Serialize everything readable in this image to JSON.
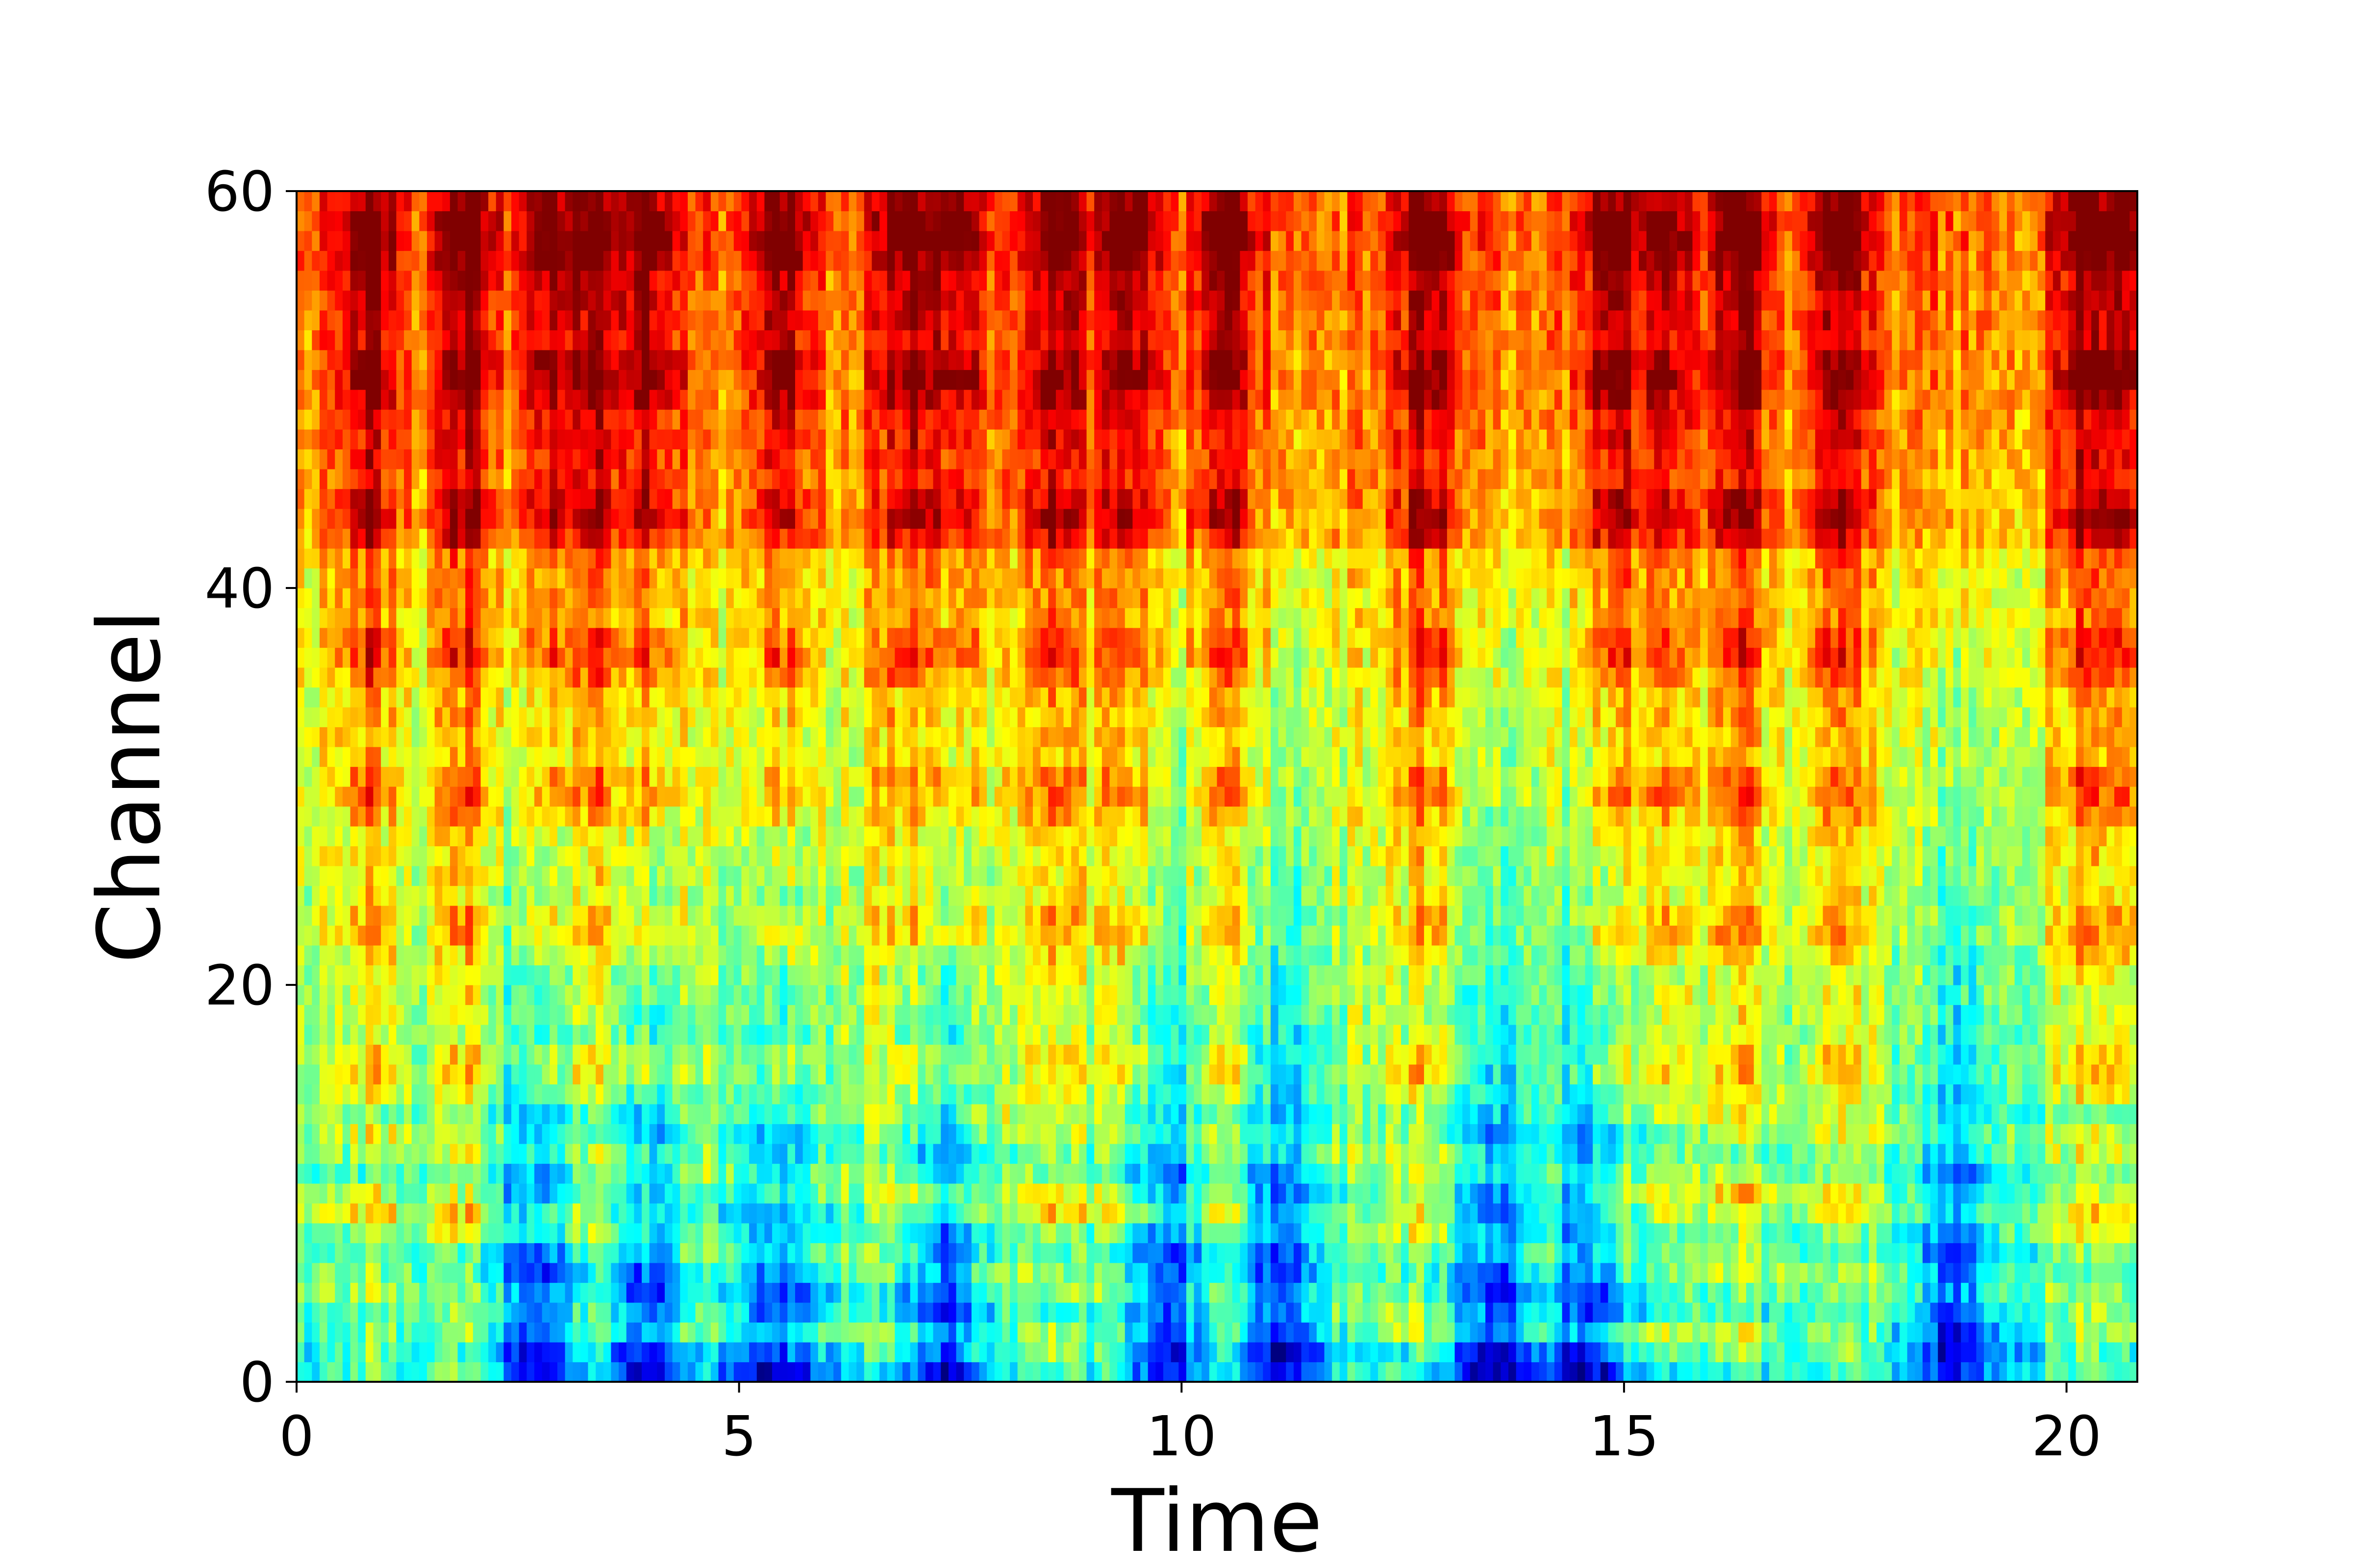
{
  "chart_data": {
    "type": "heatmap",
    "xlabel": "Time",
    "ylabel": "Channel",
    "xlim": [
      0,
      20.8
    ],
    "ylim": [
      0,
      60
    ],
    "xticks": [
      0,
      5,
      10,
      15,
      20
    ],
    "yticks": [
      0,
      20,
      40,
      60
    ],
    "colormap": "jet",
    "grid": false,
    "rows": 60,
    "frames": 240,
    "high_energy_times": [
      0.8,
      1.9,
      2.9,
      3.3,
      4.0,
      5.5,
      6.9,
      7.4,
      8.6,
      9.4,
      10.5,
      12.8,
      14.9,
      15.4,
      16.3,
      17.4,
      20.2,
      20.6
    ],
    "quiet_low_channel_times": [
      2.7,
      3.9,
      5.4,
      7.3,
      9.8,
      11.1,
      13.5,
      14.6,
      18.7
    ]
  }
}
